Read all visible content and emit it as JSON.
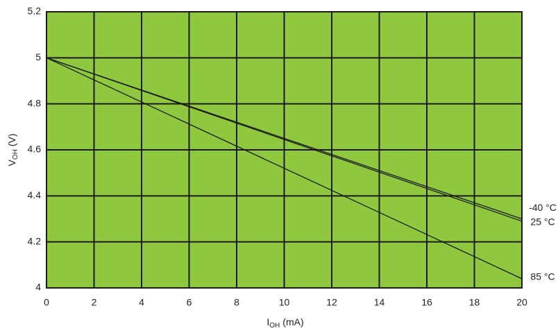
{
  "chart_data": {
    "type": "line",
    "y_label": {
      "symbol": "V",
      "subscript": "OH",
      "unit": "(V)"
    },
    "x_label": {
      "symbol": "I",
      "subscript": "OH",
      "unit": "(mA)"
    },
    "x": [
      0,
      20
    ],
    "series": [
      {
        "name": "-40 °C",
        "color": "#1a1a1a",
        "values": [
          5,
          4.3
        ]
      },
      {
        "name": "25 °C",
        "color": "#1a1a1a",
        "values": [
          5,
          4.29
        ]
      },
      {
        "name": "85 °C",
        "color": "#1a1a1a",
        "values": [
          5,
          4.04
        ]
      }
    ],
    "xlim": [
      0,
      20
    ],
    "xticks": [
      0,
      2,
      4,
      6,
      8,
      10,
      12,
      14,
      16,
      18,
      20
    ],
    "ylim": [
      4,
      5.2
    ],
    "yticks": [
      4,
      {
        "value": 4.2,
        "label": "4.2"
      },
      {
        "value": 4.4,
        "label": "4.4"
      },
      {
        "value": 4.6,
        "label": "4.6"
      },
      {
        "value": 4.8,
        "label": "4.8"
      },
      5,
      {
        "value": 5.2,
        "label": "5.2"
      }
    ],
    "grid": true,
    "background": "#8fc73e"
  }
}
